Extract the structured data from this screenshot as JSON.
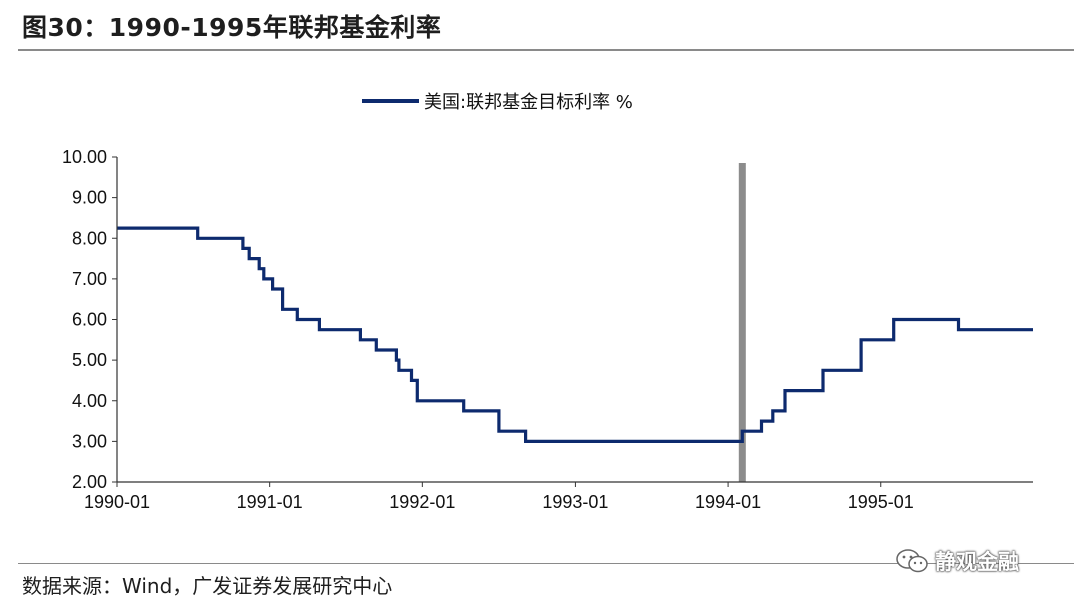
{
  "header": {
    "title": "图30：1990-1995年联邦基金利率"
  },
  "footer": {
    "source": "数据来源：Wind，广发证券发展研究中心",
    "watermark": "静观金融"
  },
  "colors": {
    "series": "#0d2a6e",
    "marker": "#8c8c8c",
    "axis": "#333333"
  },
  "chart_data": {
    "type": "line",
    "step": true,
    "title": "",
    "xlabel": "",
    "ylabel": "",
    "ylim": [
      2,
      10
    ],
    "yticks": [
      "10.00",
      "9.00",
      "8.00",
      "7.00",
      "6.00",
      "5.00",
      "4.00",
      "3.00",
      "2.00"
    ],
    "xlim": [
      "1990-01-01",
      "1995-12-31"
    ],
    "xticks": [
      "1990-01",
      "1991-01",
      "1992-01",
      "1993-01",
      "1994-01",
      "1995-01"
    ],
    "legend": {
      "position": "top-center",
      "entries": [
        "美国:联邦基金目标利率 %"
      ]
    },
    "grid": false,
    "series": [
      {
        "name": "美国:联邦基金目标利率 %",
        "points": [
          [
            "1990-01-01",
            8.25
          ],
          [
            "1990-07-13",
            8.0
          ],
          [
            "1990-10-29",
            7.75
          ],
          [
            "1990-11-13",
            7.5
          ],
          [
            "1990-12-07",
            7.25
          ],
          [
            "1990-12-18",
            7.0
          ],
          [
            "1991-01-08",
            6.75
          ],
          [
            "1991-02-01",
            6.25
          ],
          [
            "1991-03-08",
            6.0
          ],
          [
            "1991-04-30",
            5.75
          ],
          [
            "1991-08-06",
            5.5
          ],
          [
            "1991-09-13",
            5.25
          ],
          [
            "1991-10-31",
            5.0
          ],
          [
            "1991-11-06",
            4.75
          ],
          [
            "1991-12-06",
            4.5
          ],
          [
            "1991-12-20",
            4.0
          ],
          [
            "1992-04-09",
            3.75
          ],
          [
            "1992-07-02",
            3.25
          ],
          [
            "1992-09-04",
            3.0
          ],
          [
            "1994-02-04",
            3.25
          ],
          [
            "1994-03-22",
            3.5
          ],
          [
            "1994-04-18",
            3.75
          ],
          [
            "1994-05-17",
            4.25
          ],
          [
            "1994-08-16",
            4.75
          ],
          [
            "1994-11-15",
            5.5
          ],
          [
            "1995-02-01",
            6.0
          ],
          [
            "1995-07-06",
            5.75
          ],
          [
            "1995-12-31",
            5.75
          ]
        ]
      }
    ],
    "annotations": [
      {
        "type": "vertical-band",
        "x": "1994-02-04"
      }
    ]
  }
}
